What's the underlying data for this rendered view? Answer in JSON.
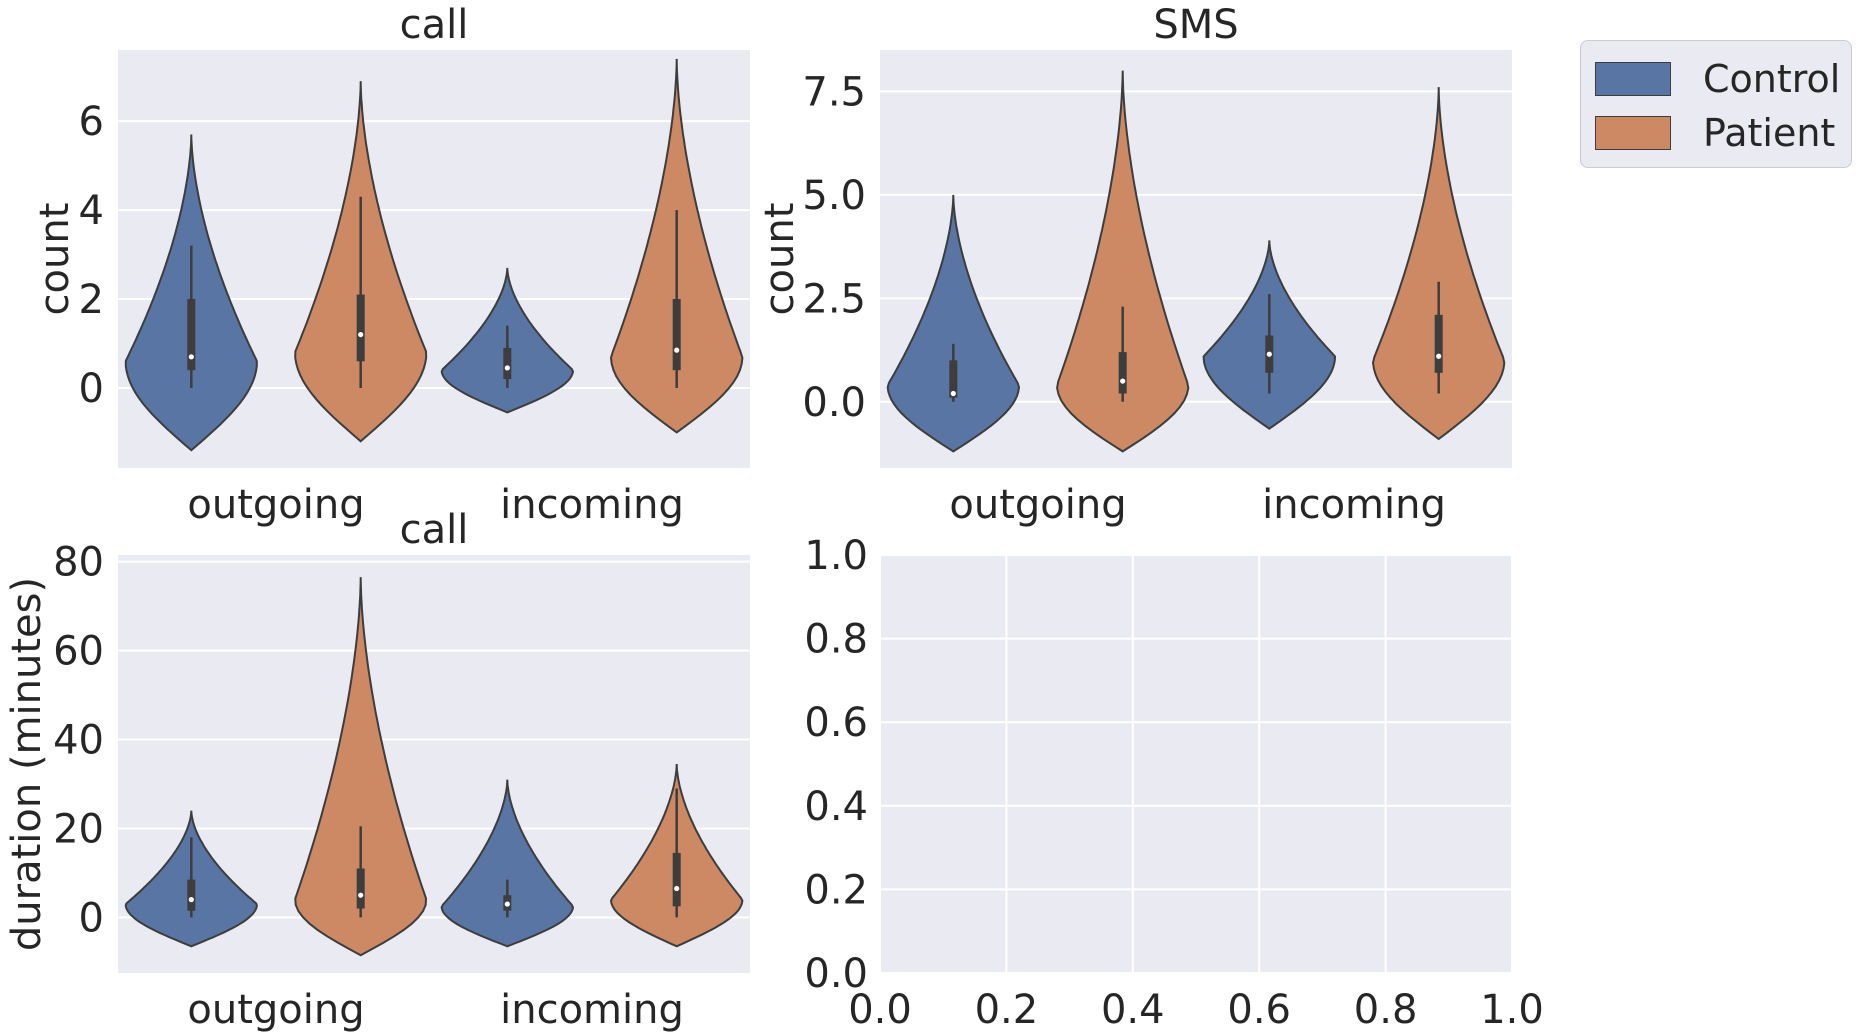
{
  "colors": {
    "control": "#5875a4",
    "patient": "#cc8963",
    "panel_bg": "#eaeaf2",
    "grid": "#ffffff",
    "edge": "#3d3d3d"
  },
  "legend": {
    "items": [
      {
        "label": "Control",
        "color": "#5875a4"
      },
      {
        "label": "Patient",
        "color": "#cc8963"
      }
    ],
    "placement": "outside-top-right"
  },
  "chart_data": [
    {
      "type": "violin",
      "title": "call",
      "xlabel": "",
      "ylabel": "count",
      "categories": [
        "outgoing",
        "incoming"
      ],
      "ylim": [
        -1.8,
        7.6
      ],
      "yticks": [
        0,
        2,
        4,
        6
      ],
      "ytick_labels": [
        "0",
        "2",
        "4",
        "6"
      ],
      "grid": true,
      "series": [
        {
          "name": "Control",
          "violins": [
            {
              "category": "outgoing",
              "min": -1.4,
              "max": 5.7,
              "mode": 0.6,
              "median": 0.7,
              "q1": 0.4,
              "q3": 2.0,
              "whisker_low": 0.0,
              "whisker_high": 3.2
            },
            {
              "category": "incoming",
              "min": -0.55,
              "max": 2.7,
              "mode": 0.4,
              "median": 0.45,
              "q1": 0.2,
              "q3": 0.9,
              "whisker_low": 0.0,
              "whisker_high": 1.4
            }
          ]
        },
        {
          "name": "Patient",
          "violins": [
            {
              "category": "outgoing",
              "min": -1.2,
              "max": 6.9,
              "mode": 0.8,
              "median": 1.2,
              "q1": 0.6,
              "q3": 2.1,
              "whisker_low": 0.0,
              "whisker_high": 4.3
            },
            {
              "category": "incoming",
              "min": -1.0,
              "max": 7.4,
              "mode": 0.7,
              "median": 0.85,
              "q1": 0.4,
              "q3": 2.0,
              "whisker_low": 0.0,
              "whisker_high": 4.0
            }
          ]
        }
      ]
    },
    {
      "type": "violin",
      "title": "SMS",
      "xlabel": "",
      "ylabel": "count",
      "categories": [
        "outgoing",
        "incoming"
      ],
      "ylim": [
        -1.6,
        8.5
      ],
      "yticks": [
        0,
        2.5,
        5,
        7.5
      ],
      "ytick_labels": [
        "0.0",
        "2.5",
        "5.0",
        "7.5"
      ],
      "grid": true,
      "series": [
        {
          "name": "Control",
          "violins": [
            {
              "category": "outgoing",
              "min": -1.2,
              "max": 5.0,
              "mode": 0.4,
              "median": 0.2,
              "q1": 0.1,
              "q3": 1.0,
              "whisker_low": 0.0,
              "whisker_high": 1.4
            },
            {
              "category": "incoming",
              "min": -0.65,
              "max": 3.9,
              "mode": 1.1,
              "median": 1.15,
              "q1": 0.7,
              "q3": 1.6,
              "whisker_low": 0.2,
              "whisker_high": 2.6
            }
          ]
        },
        {
          "name": "Patient",
          "violins": [
            {
              "category": "outgoing",
              "min": -1.2,
              "max": 8.0,
              "mode": 0.4,
              "median": 0.5,
              "q1": 0.2,
              "q3": 1.2,
              "whisker_low": 0.0,
              "whisker_high": 2.3
            },
            {
              "category": "incoming",
              "min": -0.9,
              "max": 7.6,
              "mode": 1.0,
              "median": 1.1,
              "q1": 0.7,
              "q3": 2.1,
              "whisker_low": 0.2,
              "whisker_high": 2.9
            }
          ]
        }
      ]
    },
    {
      "type": "violin",
      "title": "call",
      "xlabel": "",
      "ylabel": "duration (minutes)",
      "categories": [
        "outgoing",
        "incoming"
      ],
      "ylim": [
        -12.5,
        81.5
      ],
      "yticks": [
        0,
        20,
        40,
        60,
        80
      ],
      "ytick_labels": [
        "0",
        "20",
        "40",
        "60",
        "80"
      ],
      "grid": true,
      "series": [
        {
          "name": "Control",
          "violins": [
            {
              "category": "outgoing",
              "min": -6.5,
              "max": 24.0,
              "mode": 3.0,
              "median": 4.0,
              "q1": 1.5,
              "q3": 8.5,
              "whisker_low": 0.0,
              "whisker_high": 18.0
            },
            {
              "category": "incoming",
              "min": -6.5,
              "max": 31.0,
              "mode": 2.5,
              "median": 3.0,
              "q1": 1.5,
              "q3": 5.0,
              "whisker_low": 0.0,
              "whisker_high": 8.5
            }
          ]
        },
        {
          "name": "Patient",
          "violins": [
            {
              "category": "outgoing",
              "min": -8.5,
              "max": 76.5,
              "mode": 4.0,
              "median": 5.0,
              "q1": 2.0,
              "q3": 11.0,
              "whisker_low": 0.0,
              "whisker_high": 20.5
            },
            {
              "category": "incoming",
              "min": -6.5,
              "max": 34.5,
              "mode": 4.0,
              "median": 6.5,
              "q1": 2.5,
              "q3": 14.5,
              "whisker_low": 0.0,
              "whisker_high": 29.0
            }
          ]
        }
      ]
    },
    {
      "type": "empty",
      "title": "",
      "xlim": [
        0,
        1
      ],
      "ylim": [
        0,
        1
      ],
      "xticks": [
        0,
        0.2,
        0.4,
        0.6,
        0.8,
        1.0
      ],
      "yticks": [
        0,
        0.2,
        0.4,
        0.6,
        0.8,
        1.0
      ],
      "xtick_labels": [
        "0.0",
        "0.2",
        "0.4",
        "0.6",
        "0.8",
        "1.0"
      ],
      "ytick_labels": [
        "0.0",
        "0.2",
        "0.4",
        "0.6",
        "0.8",
        "1.0"
      ],
      "grid": true
    }
  ]
}
